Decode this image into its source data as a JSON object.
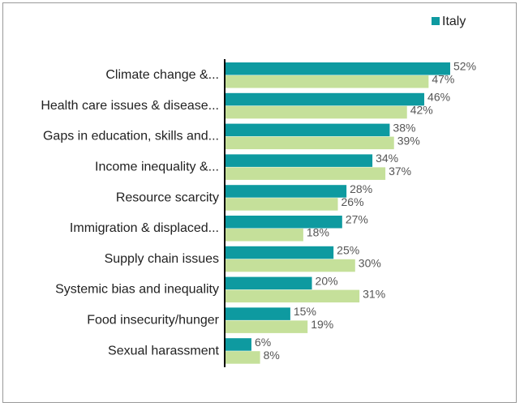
{
  "chart_data": {
    "type": "hbar",
    "categories": [
      "Climate change &...",
      "Health care issues & disease...",
      "Gaps in education, skills and...",
      "Income inequality &...",
      "Resource scarcity",
      "Immigration & displaced...",
      "Supply chain issues",
      "Systemic bias and inequality",
      "Food insecurity/hunger",
      "Sexual harassment"
    ],
    "series": [
      {
        "name": "Italy",
        "color": "#0e9aa0",
        "values": [
          52,
          46,
          38,
          34,
          28,
          27,
          25,
          20,
          15,
          6
        ],
        "value_labels": [
          "52%",
          "46%",
          "38%",
          "34%",
          "28%",
          "27%",
          "25%",
          "20%",
          "15%",
          "6%"
        ]
      },
      {
        "color": "#c5e09a",
        "values": [
          47,
          42,
          39,
          37,
          26,
          18,
          30,
          31,
          19,
          8
        ],
        "value_labels": [
          "47%",
          "42%",
          "39%",
          "37%",
          "26%",
          "18%",
          "30%",
          "31%",
          "19%",
          "8%"
        ]
      }
    ],
    "legend": "top-right"
  }
}
